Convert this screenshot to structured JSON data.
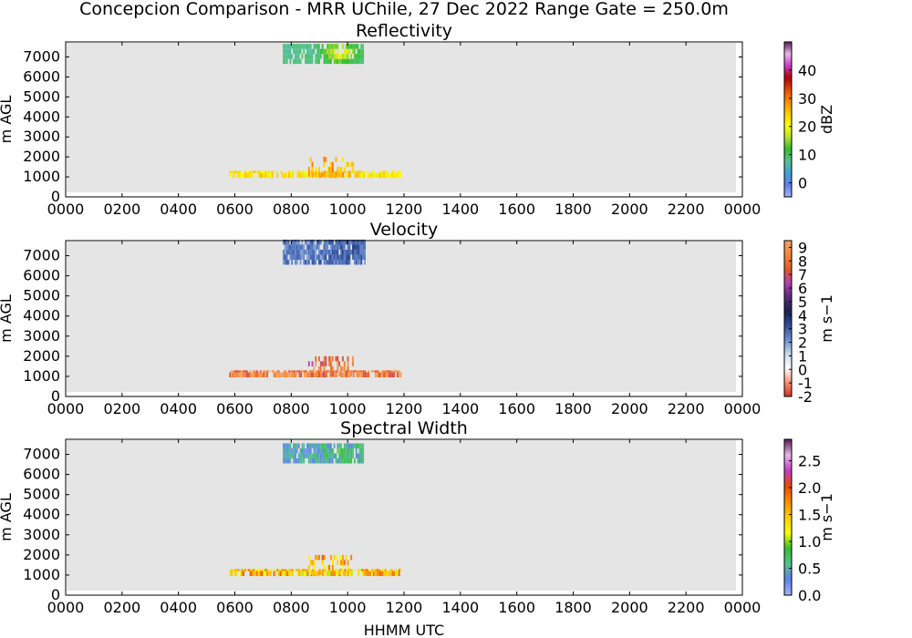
{
  "figure": {
    "suptitle": "Concepcion Comparison - MRR UChile, 27 Dec 2022 Range Gate = 250.0m",
    "xlabel": "HHMM UTC"
  },
  "chart_data": [
    {
      "type": "heatmap",
      "title": "Reflectivity",
      "ylabel": "m AGL",
      "xticks": [
        "0000",
        "0200",
        "0400",
        "0600",
        "0800",
        "1000",
        "1200",
        "1400",
        "1600",
        "1800",
        "2000",
        "2200",
        "0000"
      ],
      "xlim_hours": [
        0,
        24
      ],
      "yticks": [
        "0",
        "1000",
        "2000",
        "3000",
        "4000",
        "5000",
        "6000",
        "7000"
      ],
      "ylim": [
        0,
        7750
      ],
      "colorbar": {
        "label": "dBZ",
        "ticks": [
          "0",
          "10",
          "20",
          "30",
          "40"
        ],
        "range": [
          -5,
          50
        ],
        "colors": [
          "#a3b4f5",
          "#5e81f0",
          "#3fa0d8",
          "#55c38f",
          "#2fbf2f",
          "#b6e02a",
          "#ffff00",
          "#ffcc00",
          "#ff8c00",
          "#e64b00",
          "#b40000",
          "#c83cc8",
          "#e8b4e8",
          "#5a1a5a"
        ]
      },
      "clusters": [
        {
          "name": "upper",
          "t_start": 7.7,
          "t_end": 10.55,
          "z_bottom": 6650,
          "z_top": 7500,
          "value": 8,
          "peak_time": 9.7,
          "peak_value": 22
        },
        {
          "name": "lower",
          "t_start": 5.8,
          "t_end": 11.9,
          "z_bottom": 950,
          "z_top": 1300,
          "value": 22,
          "peak_time": 9.4,
          "peak_value": 28
        },
        {
          "name": "lower-core",
          "t_start": 8.6,
          "t_end": 10.2,
          "z_bottom": 1000,
          "z_top": 1900,
          "value": 26
        }
      ]
    },
    {
      "type": "heatmap",
      "title": "Velocity",
      "ylabel": "m AGL",
      "xticks": [
        "0000",
        "0200",
        "0400",
        "0600",
        "0800",
        "1000",
        "1200",
        "1400",
        "1600",
        "1800",
        "2000",
        "2200",
        "0000"
      ],
      "xlim_hours": [
        0,
        24
      ],
      "yticks": [
        "0",
        "1000",
        "2000",
        "3000",
        "4000",
        "5000",
        "6000",
        "7000"
      ],
      "ylim": [
        0,
        7750
      ],
      "colorbar": {
        "label": "m s−1",
        "ticks": [
          "-2",
          "-1",
          "0",
          "1",
          "2",
          "3",
          "4",
          "5",
          "6",
          "7",
          "8",
          "9"
        ],
        "range": [
          -2,
          9.5
        ],
        "colors": [
          "#d7301f",
          "#fc9272",
          "#ffffff",
          "#c6dbef",
          "#6b8fd0",
          "#2f4e9e",
          "#1a2250",
          "#5a2a7a",
          "#b040b0",
          "#e05a20",
          "#f5873c",
          "#f8a060"
        ]
      },
      "clusters": [
        {
          "name": "upper",
          "t_start": 7.7,
          "t_end": 10.6,
          "z_bottom": 6550,
          "z_top": 7700,
          "value": 2.5,
          "peak_time": 10.0,
          "peak_value": 3.3
        },
        {
          "name": "lower",
          "t_start": 5.8,
          "t_end": 11.9,
          "z_bottom": 950,
          "z_top": 1300,
          "value": 8.5
        },
        {
          "name": "lower-core",
          "t_start": 8.6,
          "t_end": 10.2,
          "z_bottom": 1000,
          "z_top": 1900,
          "value": 8.0
        }
      ]
    },
    {
      "type": "heatmap",
      "title": "Spectral Width",
      "ylabel": "m AGL",
      "xticks": [
        "0000",
        "0200",
        "0400",
        "0600",
        "0800",
        "1000",
        "1200",
        "1400",
        "1600",
        "1800",
        "2000",
        "2200",
        "0000"
      ],
      "xlim_hours": [
        0,
        24
      ],
      "yticks": [
        "0",
        "1000",
        "2000",
        "3000",
        "4000",
        "5000",
        "6000",
        "7000"
      ],
      "ylim": [
        0,
        7750
      ],
      "colorbar": {
        "label": "m s−1",
        "ticks": [
          "0.0",
          "0.5",
          "1.0",
          "1.5",
          "2.0",
          "2.5"
        ],
        "range": [
          0,
          2.9
        ],
        "colors": [
          "#a3b4f5",
          "#5e81f0",
          "#55c38f",
          "#2fbf2f",
          "#ffff00",
          "#ffcc00",
          "#ff8c00",
          "#e64b00",
          "#c83cc8",
          "#e8b4e8",
          "#5a1a5a"
        ]
      },
      "clusters": [
        {
          "name": "upper",
          "t_start": 7.7,
          "t_end": 10.55,
          "z_bottom": 6550,
          "z_top": 7500,
          "value": 0.45,
          "peak_time": 9.8,
          "peak_value": 0.75
        },
        {
          "name": "lower",
          "t_start": 5.8,
          "t_end": 11.9,
          "z_bottom": 950,
          "z_top": 1300,
          "value": 1.5
        },
        {
          "name": "lower-core",
          "t_start": 8.6,
          "t_end": 10.2,
          "z_bottom": 1000,
          "z_top": 1900,
          "value": 1.6
        }
      ]
    }
  ]
}
